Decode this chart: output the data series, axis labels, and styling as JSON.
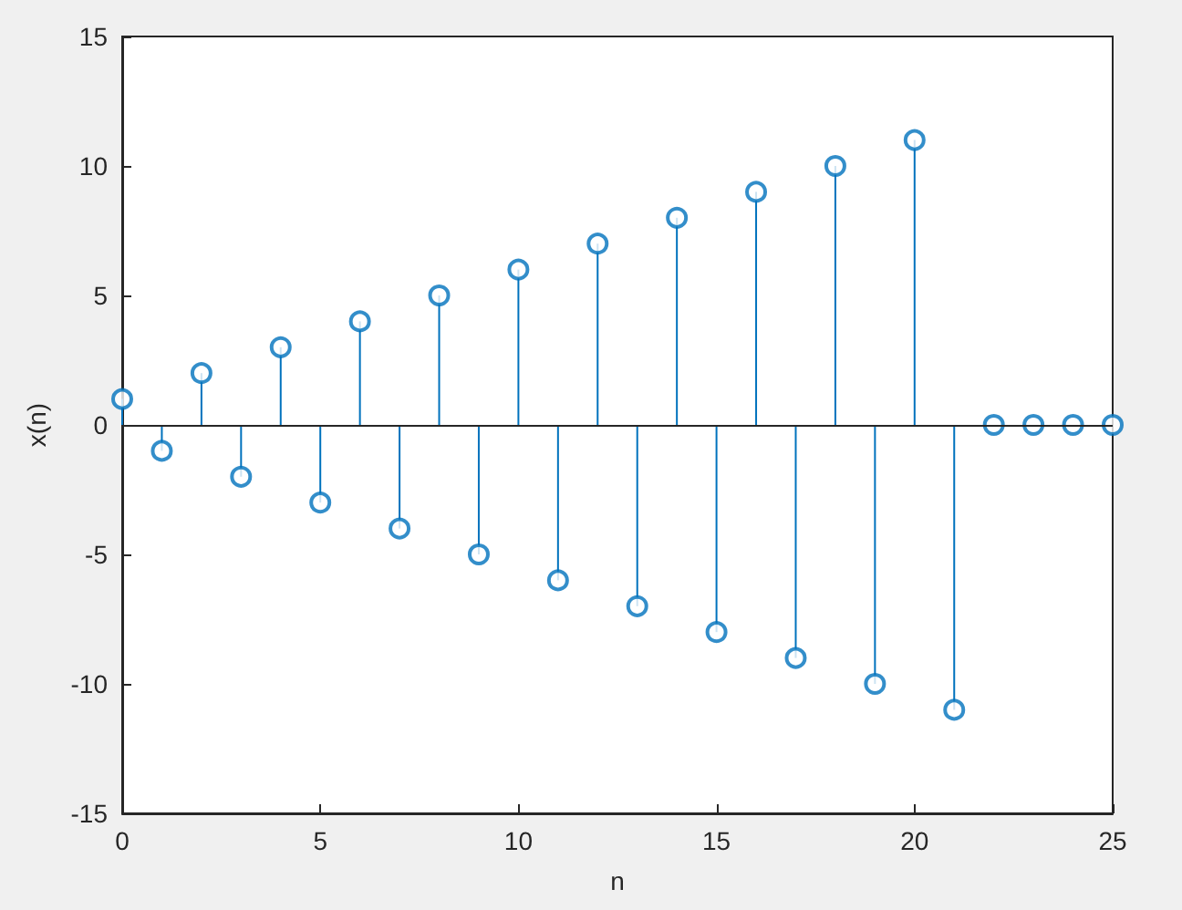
{
  "chart_data": {
    "type": "lollipop",
    "xlabel": "n",
    "ylabel": "x(n)",
    "x": [
      0,
      1,
      2,
      3,
      4,
      5,
      6,
      7,
      8,
      9,
      10,
      11,
      12,
      13,
      14,
      15,
      16,
      17,
      18,
      19,
      20,
      21,
      22,
      23,
      24,
      25
    ],
    "values": [
      1,
      -1,
      2,
      -2,
      3,
      -3,
      4,
      -4,
      5,
      -5,
      6,
      -6,
      7,
      -7,
      8,
      -8,
      9,
      -9,
      10,
      -10,
      11,
      -11,
      0,
      0,
      0,
      0
    ],
    "color": "#0072bd",
    "xlim": [
      0,
      25
    ],
    "xticks": [
      0,
      5,
      10,
      15,
      20,
      25
    ],
    "ylim": [
      -15,
      15
    ],
    "yticks": [
      -15,
      -10,
      -5,
      0,
      5,
      10,
      15
    ],
    "ref_lines": [
      {
        "axis": "y",
        "value": 0,
        "color": "#262626"
      }
    ],
    "marker": "circle",
    "grid": false
  }
}
